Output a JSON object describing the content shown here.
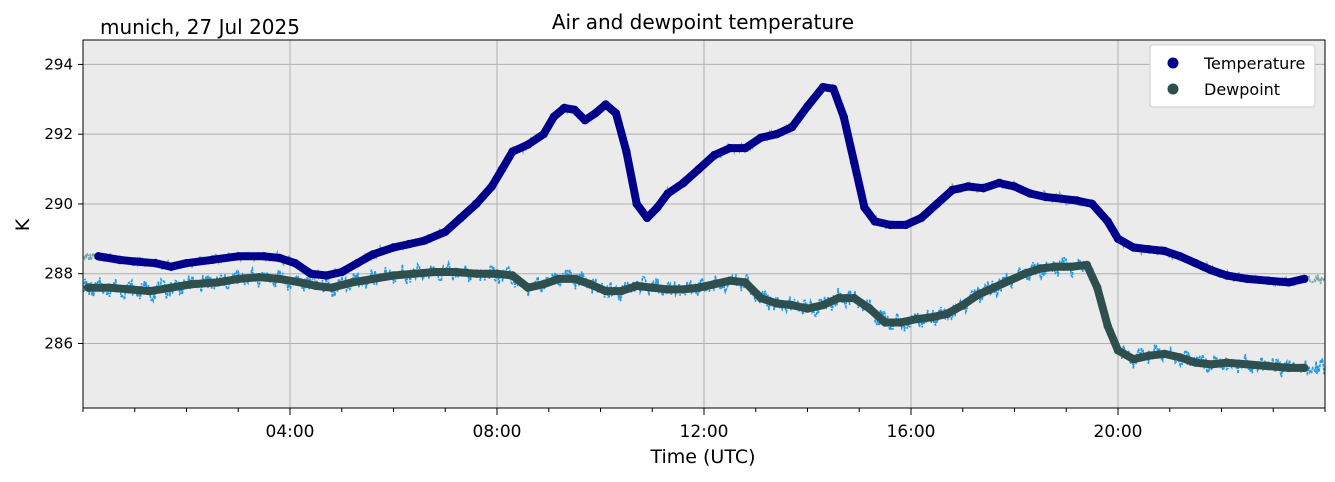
{
  "chart_data": {
    "type": "line",
    "title": "Air and dewpoint temperature",
    "subtitle": "munich, 27 Jul 2025",
    "xlabel": "Time (UTC)",
    "ylabel": "K",
    "xlim": [
      0,
      24
    ],
    "ylim": [
      284.15,
      294.7
    ],
    "x_ticks": [
      4,
      8,
      12,
      16,
      20
    ],
    "x_tick_labels": [
      "04:00",
      "08:00",
      "12:00",
      "16:00",
      "20:00"
    ],
    "y_ticks": [
      286,
      288,
      290,
      292,
      294
    ],
    "y_tick_labels": [
      "286",
      "288",
      "290",
      "292",
      "294"
    ],
    "grid": true,
    "legend_position": "top-right",
    "legend": [
      {
        "label": "Temperature",
        "color": "#00008b"
      },
      {
        "label": "Dewpoint",
        "color": "#2f4f4f"
      }
    ],
    "series": [
      {
        "name": "Temperature",
        "color": "#00008b",
        "x": [
          0.3,
          0.7,
          1.0,
          1.4,
          1.7,
          2.0,
          2.5,
          3.0,
          3.5,
          3.8,
          4.1,
          4.4,
          4.7,
          5.0,
          5.3,
          5.6,
          6.0,
          6.3,
          6.6,
          7.0,
          7.3,
          7.6,
          7.9,
          8.1,
          8.3,
          8.6,
          8.9,
          9.1,
          9.3,
          9.5,
          9.7,
          9.9,
          10.1,
          10.3,
          10.5,
          10.7,
          10.9,
          11.1,
          11.3,
          11.6,
          11.9,
          12.2,
          12.5,
          12.8,
          13.1,
          13.4,
          13.7,
          14.0,
          14.3,
          14.5,
          14.7,
          14.9,
          15.1,
          15.3,
          15.6,
          15.9,
          16.2,
          16.5,
          16.8,
          17.1,
          17.4,
          17.7,
          18.0,
          18.3,
          18.6,
          18.9,
          19.2,
          19.5,
          19.8,
          20.0,
          20.3,
          20.6,
          20.9,
          21.2,
          21.5,
          21.8,
          22.1,
          22.5,
          22.9,
          23.3,
          23.6
        ],
        "values": [
          288.5,
          288.4,
          288.35,
          288.3,
          288.2,
          288.3,
          288.4,
          288.5,
          288.5,
          288.45,
          288.3,
          288.0,
          287.95,
          288.05,
          288.3,
          288.55,
          288.75,
          288.85,
          288.95,
          289.2,
          289.6,
          290.0,
          290.5,
          291.0,
          291.5,
          291.7,
          292.0,
          292.5,
          292.75,
          292.7,
          292.4,
          292.6,
          292.85,
          292.6,
          291.5,
          290.0,
          289.6,
          289.9,
          290.3,
          290.6,
          291.0,
          291.4,
          291.6,
          291.6,
          291.9,
          292.0,
          292.2,
          292.8,
          293.35,
          293.3,
          292.5,
          291.2,
          289.9,
          289.5,
          289.4,
          289.4,
          289.6,
          290.0,
          290.4,
          290.5,
          290.45,
          290.6,
          290.5,
          290.3,
          290.2,
          290.15,
          290.1,
          290.0,
          289.5,
          289.0,
          288.75,
          288.7,
          288.65,
          288.5,
          288.3,
          288.1,
          287.95,
          287.85,
          287.8,
          287.75,
          287.85
        ]
      },
      {
        "name": "Dewpoint",
        "color": "#2f4f4f",
        "x": [
          0.1,
          0.5,
          0.9,
          1.3,
          1.7,
          2.1,
          2.6,
          3.0,
          3.4,
          3.8,
          4.2,
          4.5,
          4.8,
          5.2,
          5.6,
          6.0,
          6.4,
          6.8,
          7.2,
          7.6,
          8.0,
          8.3,
          8.6,
          8.9,
          9.2,
          9.5,
          9.8,
          10.1,
          10.4,
          10.7,
          11.0,
          11.3,
          11.6,
          11.9,
          12.2,
          12.5,
          12.8,
          13.1,
          13.4,
          13.7,
          14.0,
          14.3,
          14.6,
          14.9,
          15.2,
          15.5,
          15.8,
          16.1,
          16.4,
          16.7,
          17.0,
          17.3,
          17.6,
          17.9,
          18.2,
          18.5,
          18.8,
          19.1,
          19.4,
          19.6,
          19.8,
          20.0,
          20.3,
          20.6,
          20.9,
          21.2,
          21.5,
          21.8,
          22.1,
          22.5,
          22.9,
          23.3,
          23.6
        ],
        "values": [
          287.6,
          287.6,
          287.55,
          287.5,
          287.6,
          287.7,
          287.75,
          287.85,
          287.9,
          287.85,
          287.75,
          287.65,
          287.6,
          287.75,
          287.85,
          287.95,
          288.0,
          288.05,
          288.05,
          288.0,
          288.0,
          287.95,
          287.6,
          287.7,
          287.85,
          287.85,
          287.7,
          287.5,
          287.5,
          287.65,
          287.6,
          287.55,
          287.55,
          287.6,
          287.7,
          287.8,
          287.75,
          287.3,
          287.15,
          287.1,
          287.0,
          287.1,
          287.3,
          287.3,
          287.0,
          286.6,
          286.6,
          286.7,
          286.75,
          286.85,
          287.1,
          287.4,
          287.6,
          287.8,
          288.0,
          288.15,
          288.2,
          288.2,
          288.25,
          287.6,
          286.5,
          285.8,
          285.55,
          285.65,
          285.7,
          285.6,
          285.45,
          285.4,
          285.45,
          285.4,
          285.35,
          285.3,
          285.3
        ]
      }
    ]
  }
}
